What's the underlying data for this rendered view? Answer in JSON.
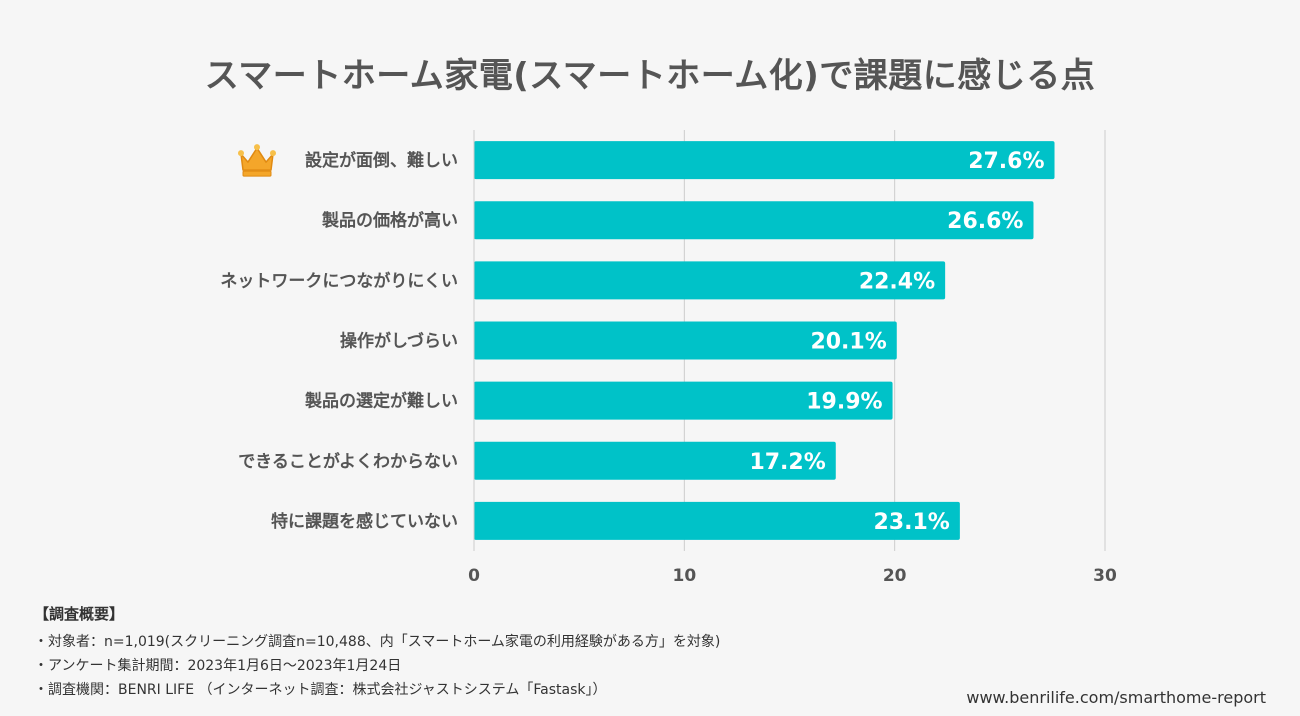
{
  "chart_data": {
    "type": "bar",
    "orientation": "horizontal",
    "title": "スマートホーム家電(スマートホーム化)で課題に感じる点",
    "categories": [
      "設定が面倒、難しい",
      "製品の価格が高い",
      "ネットワークにつながりにくい",
      "操作がしづらい",
      "製品の選定が難しい",
      "できることがよくわからない",
      "特に課題を感じていない"
    ],
    "values": [
      27.6,
      26.6,
      22.4,
      20.1,
      19.9,
      17.2,
      23.1
    ],
    "value_labels": [
      "27.6%",
      "26.6%",
      "22.4%",
      "20.1%",
      "19.9%",
      "17.2%",
      "23.1%"
    ],
    "xlim": [
      0,
      30
    ],
    "xticks": [
      "0",
      "10",
      "20",
      "30"
    ],
    "grid": true,
    "bar_color": "#00c2c8",
    "highlight_index": 0,
    "highlight_icon": "crown-icon"
  },
  "survey": {
    "heading": "【調査概要】",
    "lines": [
      "・対象者：n=1,019(スクリーニング調査n=10,488、内「スマートホーム家電の利用経験がある方」を対象)",
      "・アンケート集計期間：2023年1月6日〜2023年1月24日",
      "・調査機関：BENRI LIFE （インターネット調査：株式会社ジャストシステム「Fastask」）"
    ]
  },
  "source_url": "www.benrilife.com/smarthome-report"
}
